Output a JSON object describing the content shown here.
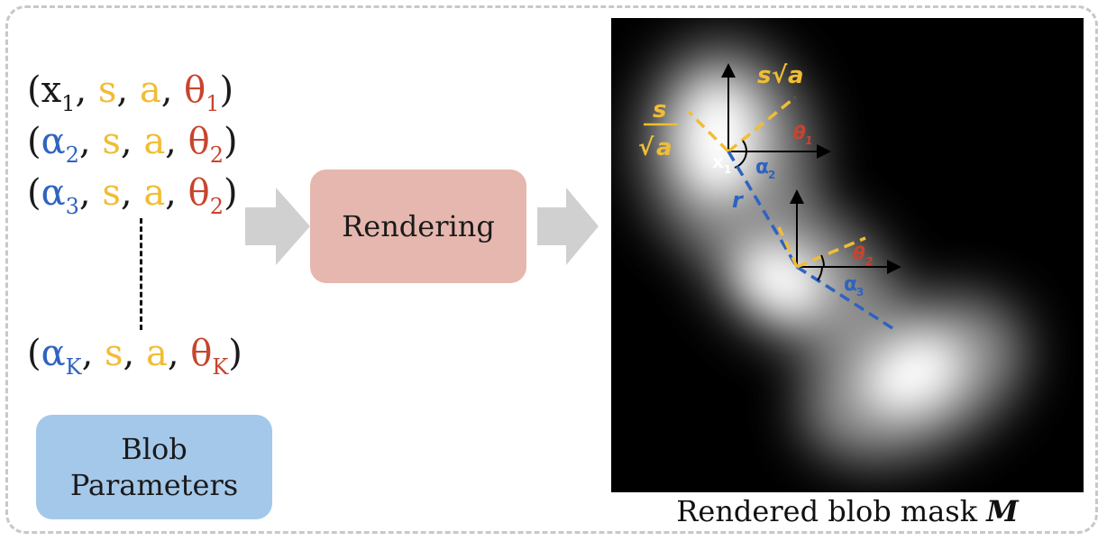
{
  "params": {
    "row1": {
      "open": "(",
      "var": "x",
      "sub": "1",
      "s": "s",
      "a": "a",
      "theta": "θ",
      "theta_sub": "1",
      "close": ")"
    },
    "row2": {
      "open": "(",
      "var": "α",
      "sub": "2",
      "s": "s",
      "a": "a",
      "theta": "θ",
      "theta_sub": "2",
      "close": ")"
    },
    "row3": {
      "open": "(",
      "var": "α",
      "sub": "3",
      "s": "s",
      "a": "a",
      "theta": "θ",
      "theta_sub": "2",
      "close": ")"
    },
    "rowK": {
      "open": "(",
      "var": "α",
      "sub": "K",
      "s": "s",
      "a": "a",
      "theta": "θ",
      "theta_sub": "K",
      "close": ")"
    },
    "sep": ", "
  },
  "blob_params_label_1": "Blob",
  "blob_params_label_2": "Parameters",
  "rendering_label": "Rendering",
  "caption": {
    "text": "Rendered blob mask ",
    "symbol": "M"
  },
  "mask_labels": {
    "s_sqrt_a_s": "s",
    "s_sqrt_a_a": "a",
    "s_over_sqrt_a_s": "s",
    "s_over_sqrt_a_a": "a",
    "theta1": "θ",
    "theta1_sub": "1",
    "x1": "x",
    "x1_sub": "1",
    "alpha2": "α",
    "alpha2_sub": "2",
    "r": "r",
    "theta2": "θ",
    "theta2_sub": "2",
    "alpha3": "α",
    "alpha3_sub": "3"
  },
  "colors": {
    "black": "#1a1a1a",
    "yellow": "#f0bd35",
    "red": "#c8442d",
    "blue": "#2e63c0",
    "blob_box": "#a4c8ea",
    "render_box": "#e6b7ae",
    "arrow": "#d0d0d0",
    "dashed_frame": "#c8c8c8"
  }
}
